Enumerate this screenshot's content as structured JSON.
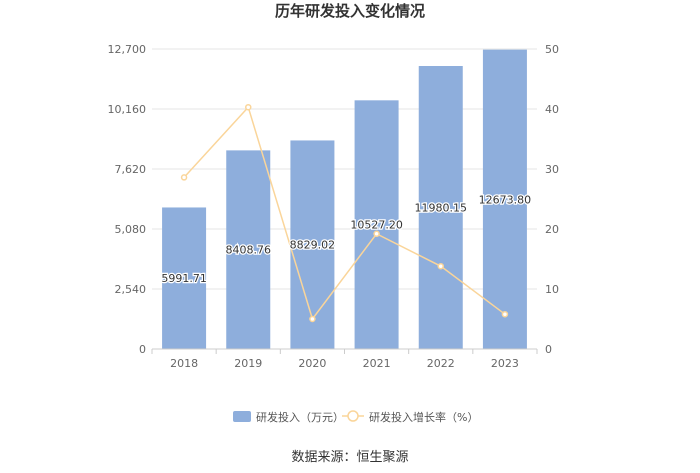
{
  "chart_data": {
    "type": "bar",
    "title": "历年研发投入变化情况",
    "categories": [
      "2018",
      "2019",
      "2020",
      "2021",
      "2022",
      "2023"
    ],
    "series": [
      {
        "name": "研发投入（万元）",
        "type": "bar",
        "axis": "left",
        "values": [
          5991.71,
          8408.76,
          8829.02,
          10527.2,
          11980.15,
          12673.8
        ],
        "labels": [
          "5991.71",
          "8408.76",
          "8829.02",
          "10527.20",
          "11980.15",
          "12673.80"
        ],
        "color": "#8eaedc"
      },
      {
        "name": "研发投入增长率（%）",
        "type": "line",
        "axis": "right",
        "values": [
          28.6,
          40.3,
          5.0,
          19.2,
          13.8,
          5.8
        ],
        "color": "#fad59a"
      }
    ],
    "y_left": {
      "min": 0,
      "max": 12700,
      "ticks": [
        "0",
        "2,540",
        "5,080",
        "7,620",
        "10,160",
        "12,700"
      ]
    },
    "y_right": {
      "min": 0,
      "max": 50,
      "ticks": [
        "0",
        "10",
        "20",
        "30",
        "40",
        "50"
      ]
    },
    "grid": true,
    "legend_position": "bottom"
  },
  "source": "数据来源：恒生聚源"
}
